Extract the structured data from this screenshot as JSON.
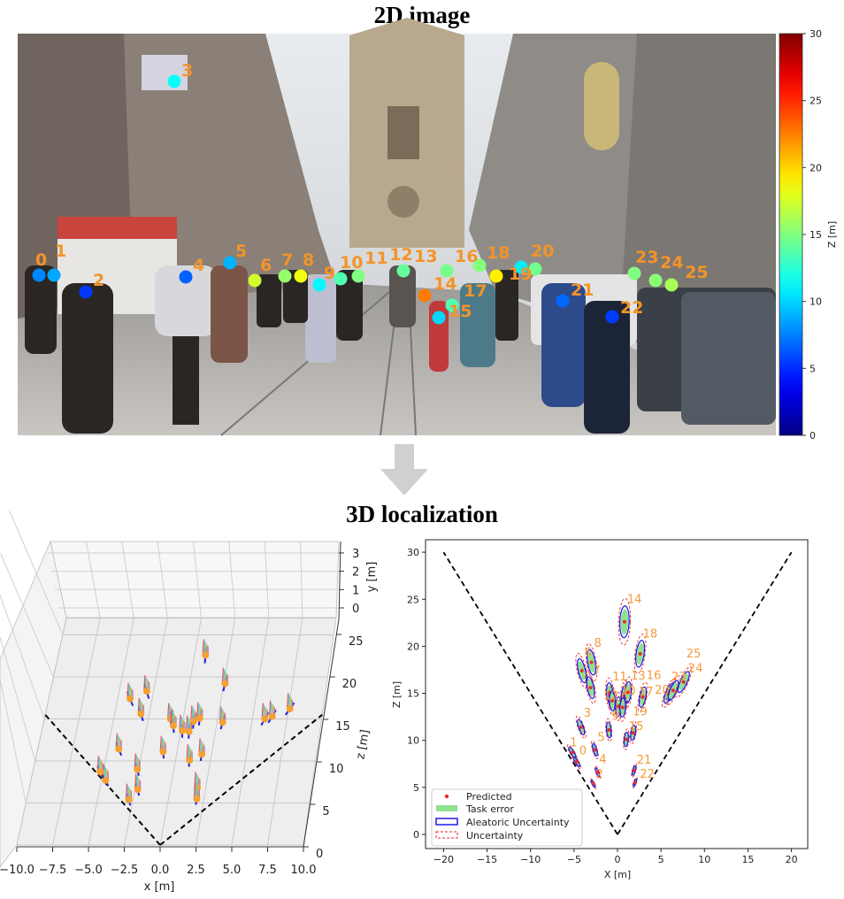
{
  "title_2d": "2D image",
  "title_3d": "3D localization",
  "colorbar": {
    "label": "Z [m]",
    "min": 0,
    "max": 30,
    "ticks": [
      "0",
      "5",
      "10",
      "15",
      "20",
      "25",
      "30"
    ],
    "colormap": "jet"
  },
  "detections": [
    {
      "id": "0",
      "x": -4.7,
      "z": 7.7
    },
    {
      "id": "1",
      "x": -5.2,
      "z": 8.7
    },
    {
      "id": "2",
      "x": -2.8,
      "z": 5.4
    },
    {
      "id": "3",
      "x": -4.2,
      "z": 11.4
    },
    {
      "id": "4",
      "x": -2.3,
      "z": 6.6
    },
    {
      "id": "5",
      "x": -2.6,
      "z": 9.0
    },
    {
      "id": "6",
      "x": -4.1,
      "z": 17.4
    },
    {
      "id": "7",
      "x": -3.1,
      "z": 15.6
    },
    {
      "id": "8",
      "x": -3.0,
      "z": 18.3
    },
    {
      "id": "9",
      "x": -1.0,
      "z": 11.1
    },
    {
      "id": "10",
      "x": 0.1,
      "z": 13.6
    },
    {
      "id": "11",
      "x": -0.9,
      "z": 15.0
    },
    {
      "id": "12",
      "x": -0.6,
      "z": 14.2
    },
    {
      "id": "13",
      "x": 0.8,
      "z": 14.7
    },
    {
      "id": "14",
      "x": 0.8,
      "z": 22.6
    },
    {
      "id": "15",
      "x": 1.0,
      "z": 10.1
    },
    {
      "id": "16",
      "x": 1.2,
      "z": 15.1
    },
    {
      "id": "17",
      "x": 0.6,
      "z": 13.5
    },
    {
      "id": "18",
      "x": 2.6,
      "z": 19.2
    },
    {
      "id": "19",
      "x": 1.8,
      "z": 10.8
    },
    {
      "id": "20",
      "x": 2.9,
      "z": 14.6
    },
    {
      "id": "21",
      "x": 1.9,
      "z": 6.8
    },
    {
      "id": "22",
      "x": 2.0,
      "z": 5.5
    },
    {
      "id": "23",
      "x": 5.9,
      "z": 15.0
    },
    {
      "id": "24",
      "x": 6.4,
      "z": 15.3
    },
    {
      "id": "25",
      "x": 7.6,
      "z": 16.2
    }
  ],
  "chart_data": [
    {
      "type": "scatter",
      "view": "3d",
      "xlabel": "x [m]",
      "ylabel": "y [m]",
      "zlabel": "z [m]",
      "xlim": [
        -10,
        10
      ],
      "ylim": [
        0,
        3
      ],
      "zlim": [
        0,
        25
      ],
      "xticks": [
        "−10.0",
        "−7.5",
        "−5.0",
        "−2.5",
        "0.0",
        "2.5",
        "5.0",
        "7.5",
        "10.0"
      ],
      "yticks": [
        "0",
        "1",
        "2",
        "3"
      ],
      "zticks": [
        "0",
        "5",
        "10",
        "15",
        "20",
        "25"
      ],
      "grid": true,
      "colors": {
        "marker": "#f5a033",
        "uncertainty": "#1f1fe0",
        "cone": "#000000"
      }
    },
    {
      "type": "scatter",
      "view": "bird-eye",
      "xlabel": "X [m]",
      "ylabel": "Z [m]",
      "xlim": [
        -22,
        22
      ],
      "ylim": [
        -1.5,
        31
      ],
      "xticks": [
        "−20",
        "−15",
        "−10",
        "−5",
        "0",
        "5",
        "10",
        "15",
        "20"
      ],
      "yticks": [
        "0",
        "5",
        "10",
        "15",
        "20",
        "25",
        "30"
      ],
      "grid": false,
      "legend_position": "lower-left",
      "legend": [
        "Predicted",
        "Task error",
        "Aleatoric Uncertainty",
        "Uncertainty"
      ],
      "colors": {
        "predicted": "#ee2a2a",
        "task_error": "#90e090",
        "aleatoric": "#1f1fe8",
        "uncertainty": "#ee2a2a",
        "labels": "#f59a3a"
      },
      "points_source": "detections"
    }
  ]
}
